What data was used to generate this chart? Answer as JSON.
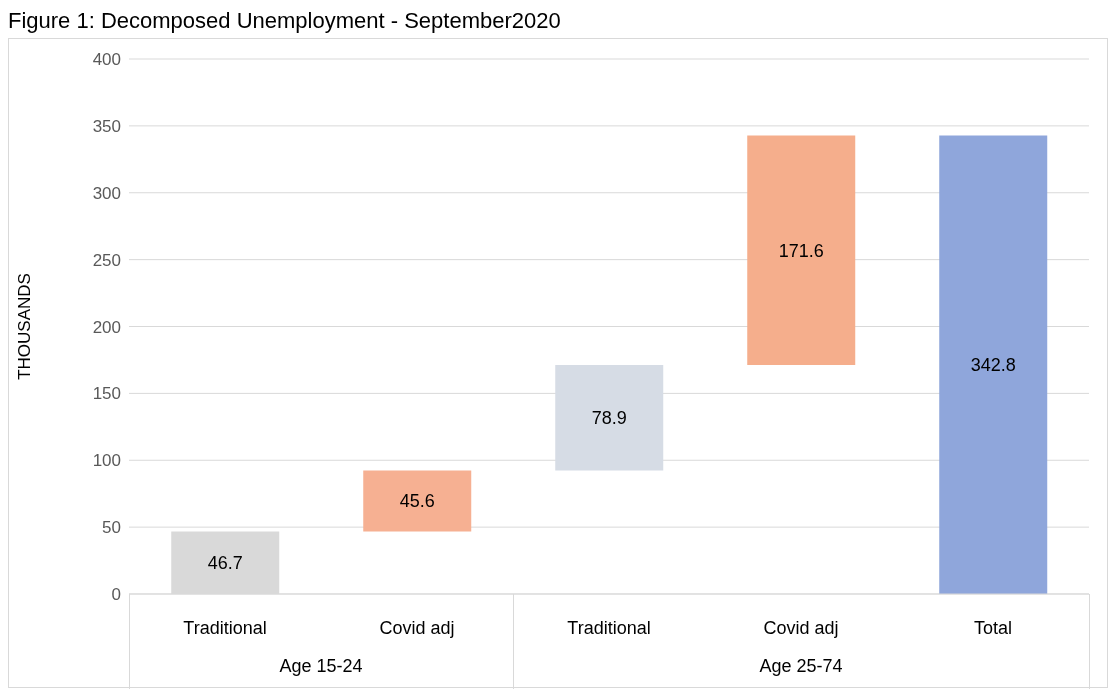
{
  "chart_data": {
    "type": "bar",
    "title": "Figure 1: Decomposed Unemployment - September2020",
    "ylabel": "THOUSANDS",
    "categories": [
      "Traditional",
      "Covid adj",
      "Traditional",
      "Covid adj",
      "Total"
    ],
    "values": [
      46.7,
      45.6,
      78.9,
      171.6,
      342.8
    ],
    "base": [
      0,
      46.7,
      92.3,
      171.2,
      0
    ],
    "colors": [
      "#d9d9d9",
      "#f6b092",
      "#d6dce5",
      "#f5ae8c",
      "#8fa6db"
    ],
    "ylim": [
      0,
      400
    ],
    "yticks": [
      0,
      50,
      100,
      150,
      200,
      250,
      300,
      350,
      400
    ],
    "grid": "y",
    "data_labels": true,
    "annotations": [
      "Age 15-24",
      "Age 25-74"
    ]
  }
}
